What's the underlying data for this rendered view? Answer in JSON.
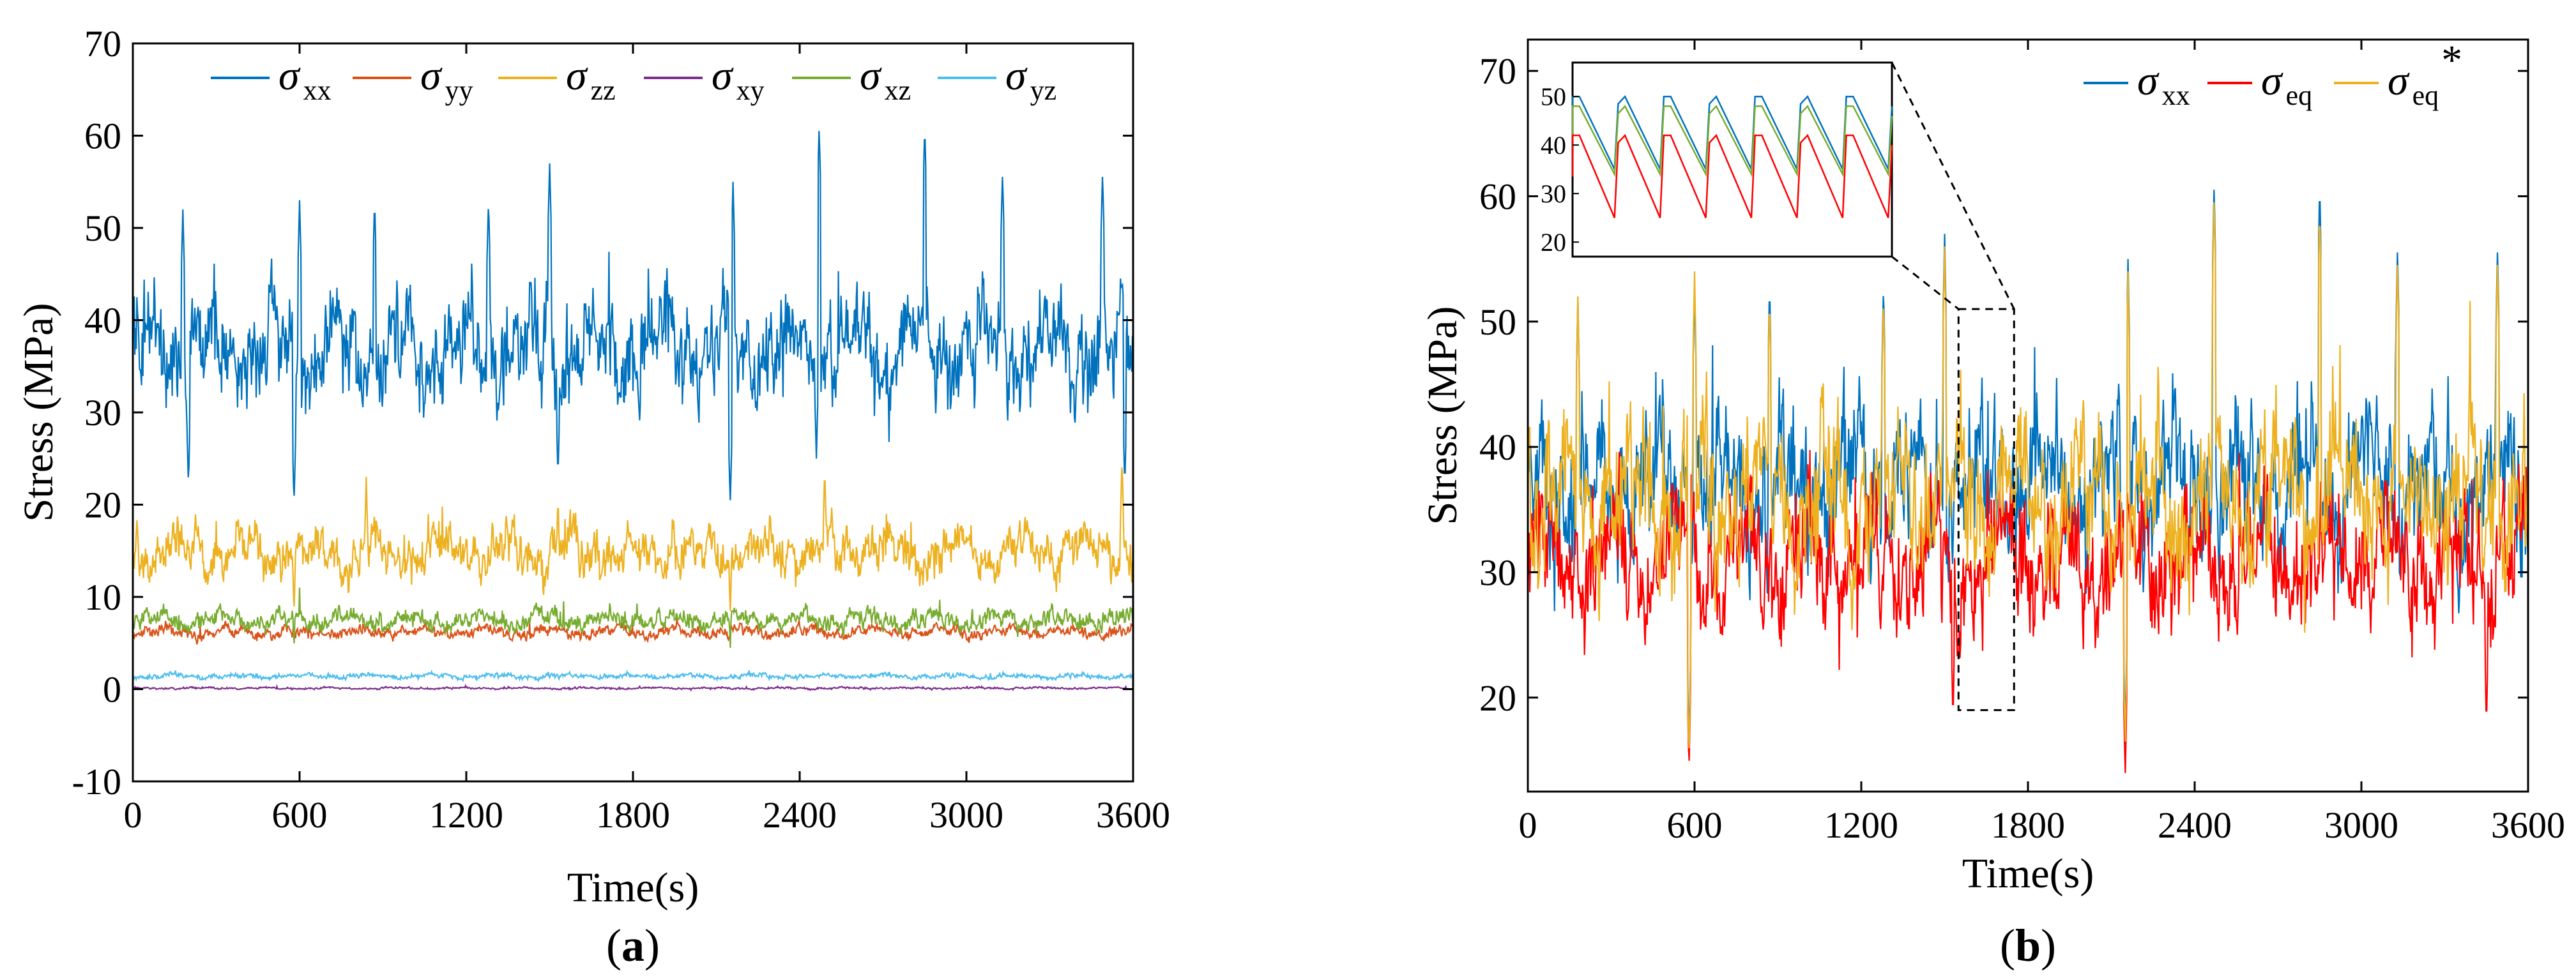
{
  "chart_data": [
    {
      "type": "line",
      "panel_label": "(a)",
      "panel_letter": "a",
      "xlabel": "Time(s)",
      "ylabel": "Stress (MPa)",
      "xlim": [
        0,
        3600
      ],
      "ylim": [
        -10,
        70
      ],
      "xticks": [
        0,
        600,
        1200,
        1800,
        2400,
        3000,
        3600
      ],
      "yticks": [
        -10,
        0,
        10,
        20,
        30,
        40,
        50,
        60,
        70
      ],
      "legend_position": "top",
      "series": [
        {
          "name": "σ xx",
          "symbol": "σ",
          "sub": "xx",
          "color": "#0072BD",
          "mean": 37,
          "noise": 5,
          "spikes": [
            [
              180,
              52
            ],
            [
              600,
              53
            ],
            [
              870,
              53
            ],
            [
              1280,
              53
            ],
            [
              1500,
              57
            ],
            [
              2160,
              55
            ],
            [
              2470,
              61
            ],
            [
              2850,
              61
            ],
            [
              3130,
              56
            ],
            [
              3490,
              56
            ]
          ],
          "dips": [
            [
              200,
              22
            ],
            [
              580,
              20
            ],
            [
              1530,
              23
            ],
            [
              2150,
              20
            ],
            [
              2460,
              25
            ],
            [
              3570,
              22
            ]
          ]
        },
        {
          "name": "σ yy",
          "symbol": "σ",
          "sub": "yy",
          "color": "#D95319",
          "mean": 6.2,
          "noise": 0.6,
          "spikes": [],
          "dips": []
        },
        {
          "name": "σ zz",
          "symbol": "σ",
          "sub": "zz",
          "color": "#EDB120",
          "mean": 15,
          "noise": 2.3,
          "spikes": [
            [
              840,
              23
            ],
            [
              1530,
              21
            ],
            [
              2490,
              24
            ],
            [
              3560,
              25
            ]
          ],
          "dips": [
            [
              580,
              8
            ],
            [
              2150,
              8
            ]
          ]
        },
        {
          "name": "σ xy",
          "symbol": "σ",
          "sub": "xy",
          "color": "#7E2F8E",
          "mean": 0.1,
          "noise": 0.1,
          "spikes": [],
          "dips": []
        },
        {
          "name": "σ xz",
          "symbol": "σ",
          "sub": "xz",
          "color": "#77AC30",
          "mean": 7.5,
          "noise": 1,
          "spikes": [
            [
              600,
              11
            ],
            [
              1550,
              10
            ]
          ],
          "dips": [
            [
              580,
              4
            ],
            [
              2150,
              4
            ]
          ]
        },
        {
          "name": "σ yz",
          "symbol": "σ",
          "sub": "yz",
          "color": "#4DBEEE",
          "mean": 1.4,
          "noise": 0.25,
          "spikes": [],
          "dips": []
        }
      ]
    },
    {
      "type": "line",
      "panel_label": "(b)",
      "panel_letter": "b",
      "xlabel": "Time(s)",
      "ylabel": "Stress (MPa)",
      "xlim": [
        0,
        3600
      ],
      "ylim": [
        12.5,
        72.5
      ],
      "xticks": [
        0,
        600,
        1200,
        1800,
        2400,
        3000,
        3600
      ],
      "yticks": [
        20,
        30,
        40,
        50,
        60,
        70
      ],
      "legend_position": "top-right",
      "series": [
        {
          "name": "σ xx",
          "symbol": "σ",
          "sub": "xx",
          "sup": "",
          "color": "#0072BD",
          "mean": 37,
          "noise": 5,
          "spikes": [
            [
              180,
              52
            ],
            [
              600,
              53
            ],
            [
              870,
              53
            ],
            [
              1280,
              53
            ],
            [
              1500,
              57
            ],
            [
              2160,
              55
            ],
            [
              2470,
              61
            ],
            [
              2850,
              61
            ],
            [
              3130,
              56
            ],
            [
              3490,
              56
            ]
          ],
          "dips": [
            [
              580,
              16
            ],
            [
              2150,
              17
            ]
          ]
        },
        {
          "name": "σ eq",
          "symbol": "σ",
          "sub": "eq",
          "sup": "",
          "color": "#FF0000",
          "mean": 31,
          "noise": 4.5,
          "spikes": [
            [
              330,
              41
            ],
            [
              2150,
              45
            ]
          ],
          "dips": [
            [
              580,
              14
            ],
            [
              2150,
              13.5
            ],
            [
              1530,
              18
            ],
            [
              3450,
              17.5
            ]
          ]
        },
        {
          "name": "σ eq*",
          "symbol": "σ",
          "sub": "eq",
          "sup": "*",
          "color": "#EDB120",
          "mean": 36,
          "noise": 5,
          "spikes": [
            [
              180,
              52
            ],
            [
              600,
              54
            ],
            [
              870,
              52
            ],
            [
              1280,
              52
            ],
            [
              1500,
              56
            ],
            [
              2160,
              54
            ],
            [
              2470,
              60
            ],
            [
              2850,
              59
            ],
            [
              3130,
              55
            ],
            [
              3490,
              55
            ]
          ],
          "dips": [
            [
              580,
              15
            ],
            [
              2150,
              16
            ]
          ]
        }
      ],
      "zoom_region": {
        "x_range": [
          1550,
          1750
        ],
        "y_range": [
          19,
          51
        ]
      },
      "inset": {
        "ylim": [
          17,
          57
        ],
        "yticks": [
          20,
          30,
          40,
          50
        ],
        "periods": 7,
        "series": [
          {
            "name": "σ xx",
            "color": "#0072BD",
            "low": 35,
            "high": 50
          },
          {
            "name": "σ eq*",
            "color": "#77AC30",
            "low": 34,
            "high": 48
          },
          {
            "name": "σ eq",
            "color": "#FF0000",
            "low": 25,
            "high": 42
          }
        ]
      }
    }
  ]
}
